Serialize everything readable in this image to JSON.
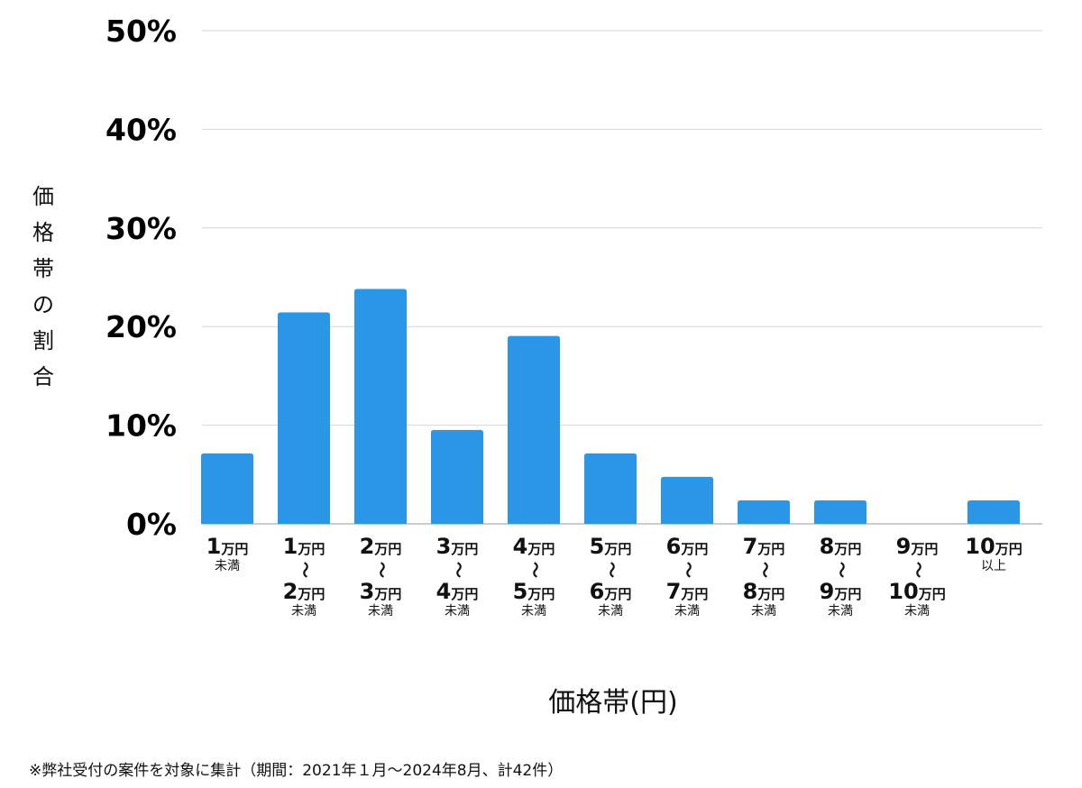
{
  "chart_data": {
    "type": "bar",
    "title": "",
    "xlabel": "価格帯(円)",
    "ylabel": "価格帯の割合",
    "ylim": [
      0,
      50
    ],
    "yticks": [
      "0%",
      "10%",
      "20%",
      "30%",
      "40%",
      "50%"
    ],
    "grid": true,
    "bar_color": "#2b95e6",
    "categories": [
      {
        "top_num": "1",
        "top_unit": "万円",
        "sep": "",
        "bottom_num": "",
        "bottom_unit": "",
        "note": "未満"
      },
      {
        "top_num": "1",
        "top_unit": "万円",
        "sep": "〜",
        "bottom_num": "2",
        "bottom_unit": "万円",
        "note": "未満"
      },
      {
        "top_num": "2",
        "top_unit": "万円",
        "sep": "〜",
        "bottom_num": "3",
        "bottom_unit": "万円",
        "note": "未満"
      },
      {
        "top_num": "3",
        "top_unit": "万円",
        "sep": "〜",
        "bottom_num": "4",
        "bottom_unit": "万円",
        "note": "未満"
      },
      {
        "top_num": "4",
        "top_unit": "万円",
        "sep": "〜",
        "bottom_num": "5",
        "bottom_unit": "万円",
        "note": "未満"
      },
      {
        "top_num": "5",
        "top_unit": "万円",
        "sep": "〜",
        "bottom_num": "6",
        "bottom_unit": "万円",
        "note": "未満"
      },
      {
        "top_num": "6",
        "top_unit": "万円",
        "sep": "〜",
        "bottom_num": "7",
        "bottom_unit": "万円",
        "note": "未満"
      },
      {
        "top_num": "7",
        "top_unit": "万円",
        "sep": "〜",
        "bottom_num": "8",
        "bottom_unit": "万円",
        "note": "未満"
      },
      {
        "top_num": "8",
        "top_unit": "万円",
        "sep": "〜",
        "bottom_num": "9",
        "bottom_unit": "万円",
        "note": "未満"
      },
      {
        "top_num": "9",
        "top_unit": "万円",
        "sep": "〜",
        "bottom_num": "10",
        "bottom_unit": "万円",
        "note": "未満"
      },
      {
        "top_num": "10",
        "top_unit": "万円",
        "sep": "",
        "bottom_num": "",
        "bottom_unit": "",
        "note": "以上"
      }
    ],
    "values": [
      7.14,
      21.43,
      23.81,
      9.52,
      19.05,
      7.14,
      4.76,
      2.38,
      2.38,
      0,
      2.38
    ]
  },
  "footnote": "※弊社受付の案件を対象に集計（期間：2021年１月〜2024年8月、計42件）"
}
